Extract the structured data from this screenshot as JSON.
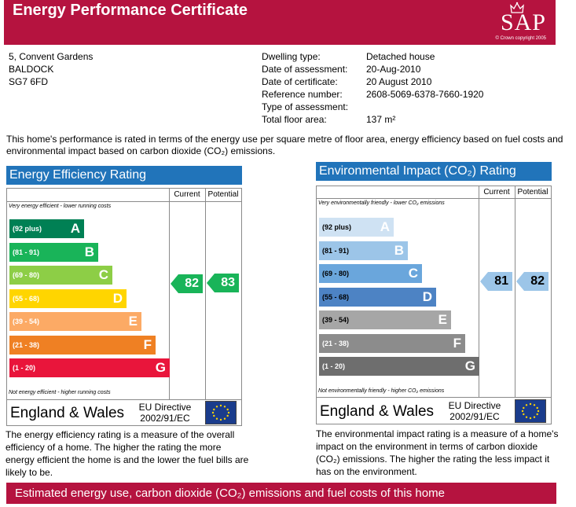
{
  "header": {
    "title": "Energy Performance Certificate",
    "logo_text": "SAP",
    "logo_copyright": "© Crown copyright 2005"
  },
  "address": [
    "5, Convent Gardens",
    "BALDOCK",
    "SG7 6FD"
  ],
  "details": [
    {
      "label": "Dwelling type:",
      "value": "Detached house"
    },
    {
      "label": "Date of assessment:",
      "value": "20-Aug-2010"
    },
    {
      "label": "Date of certificate:",
      "value": "20 August 2010"
    },
    {
      "label": "Reference number:",
      "value": "2608-5069-6378-7660-1920"
    },
    {
      "label": "Type of assessment:",
      "value": ""
    },
    {
      "label": "Total floor area:",
      "value": "137 m²"
    }
  ],
  "intro": "This home's performance is rated in terms of the energy use per square metre of floor area, energy efficiency based on fuel costs and environmental impact based on carbon dioxide (CO₂) emissions.",
  "energy": {
    "title": "Energy Efficiency Rating",
    "col_current": "Current",
    "col_potential": "Potential",
    "top_note": "Very energy efficient - lower running costs",
    "bottom_note": "Not energy efficient - higher running costs",
    "bands": [
      {
        "range": "(92 plus)",
        "letter": "A",
        "color": "#008054"
      },
      {
        "range": "(81 - 91)",
        "letter": "B",
        "color": "#19b459"
      },
      {
        "range": "(69 - 80)",
        "letter": "C",
        "color": "#8dce46"
      },
      {
        "range": "(55 - 68)",
        "letter": "D",
        "color": "#ffd500"
      },
      {
        "range": "(39 - 54)",
        "letter": "E",
        "color": "#fcaa65"
      },
      {
        "range": "(21 - 38)",
        "letter": "F",
        "color": "#ef8023"
      },
      {
        "range": "(1 - 20)",
        "letter": "G",
        "color": "#e9153b"
      }
    ],
    "current": "82",
    "potential": "83",
    "arrow_color": "#19b459",
    "country": "England & Wales",
    "directive_line1": "EU Directive",
    "directive_line2": "2002/91/EC",
    "description": "The energy efficiency rating is a measure of the overall efficiency of a home. The higher the rating the more energy efficient the home is and the lower the fuel bills are likely to be."
  },
  "environment": {
    "title": "Environmental Impact (CO₂) Rating",
    "col_current": "Current",
    "col_potential": "Potential",
    "top_note": "Very environmentally friendly - lower CO₂ emissions",
    "bottom_note": "Not environmentally friendly - higher CO₂ emissions",
    "bands": [
      {
        "range": "(92 plus)",
        "letter": "A",
        "color": "#cfe2f3"
      },
      {
        "range": "(81 - 91)",
        "letter": "B",
        "color": "#9cc5e8"
      },
      {
        "range": "(69 - 80)",
        "letter": "C",
        "color": "#6aa6dc"
      },
      {
        "range": "(55 - 68)",
        "letter": "D",
        "color": "#4d83c4"
      },
      {
        "range": "(39 - 54)",
        "letter": "E",
        "color": "#a6a6a6"
      },
      {
        "range": "(21 - 38)",
        "letter": "F",
        "color": "#8c8c8c"
      },
      {
        "range": "(1 - 20)",
        "letter": "G",
        "color": "#6e6e6e"
      }
    ],
    "current": "81",
    "potential": "82",
    "arrow_color": "#9cc5e8",
    "country": "England & Wales",
    "directive_line1": "EU Directive",
    "directive_line2": "2002/91/EC",
    "description": "The environmental impact rating is a measure of a home's impact on the environment in terms of carbon dioxide (CO₂) emissions. The higher the rating the less impact it has on the environment."
  },
  "bottom_bar": "Estimated energy use, carbon dioxide (CO₂) emissions and fuel costs of this home"
}
